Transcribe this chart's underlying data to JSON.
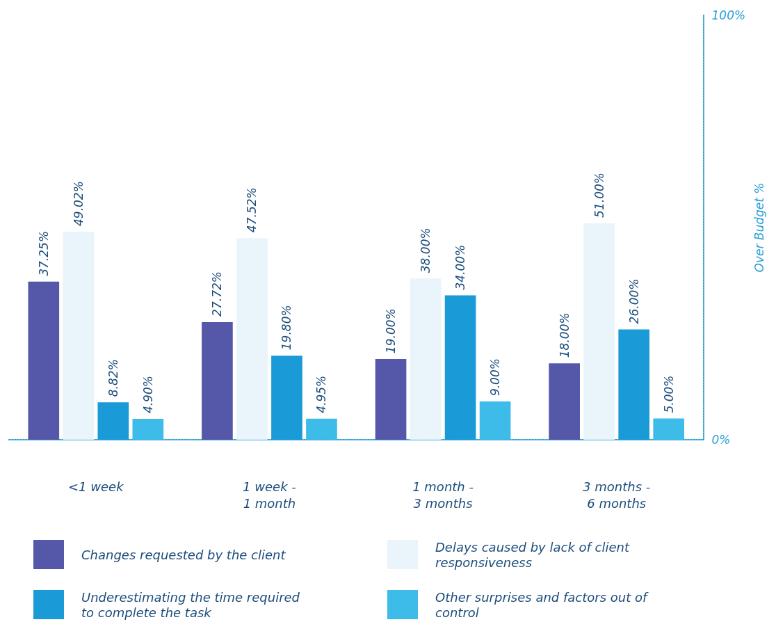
{
  "chart_data": {
    "type": "bar",
    "categories": [
      "<1 week",
      "1 week -\n1 month",
      "1 month -\n3 months",
      "3 months -\n6 months"
    ],
    "ylabel": "Over Budget %",
    "ylim": [
      0,
      100
    ],
    "yticks": [
      {
        "value": 0,
        "label": "0%"
      },
      {
        "value": 100,
        "label": "100%"
      }
    ],
    "series": [
      {
        "name": "Changes requested by the client",
        "color": "#5558a8",
        "values": [
          37.25,
          27.72,
          19.0,
          18.0
        ],
        "value_labels": [
          "37.25%",
          "27.72%",
          "19.00%",
          "18.00%"
        ]
      },
      {
        "name": "Delays caused by lack of client responsiveness",
        "color": "#e9f4fb",
        "values": [
          49.02,
          47.52,
          38.0,
          51.0
        ],
        "value_labels": [
          "49.02%",
          "47.52%",
          "38.00%",
          "51.00%"
        ]
      },
      {
        "name": "Underestimating the time required to complete the task",
        "color": "#1a9ad6",
        "values": [
          8.82,
          19.8,
          34.0,
          26.0
        ],
        "value_labels": [
          "8.82%",
          "19.80%",
          "34.00%",
          "26.00%"
        ]
      },
      {
        "name": "Other surprises and factors out of control",
        "color": "#3dbbe9",
        "values": [
          4.9,
          4.95,
          9.0,
          5.0
        ],
        "value_labels": [
          "4.90%",
          "4.95%",
          "9.00%",
          "5.00%"
        ]
      }
    ],
    "grid": false,
    "legend": "bottom"
  }
}
